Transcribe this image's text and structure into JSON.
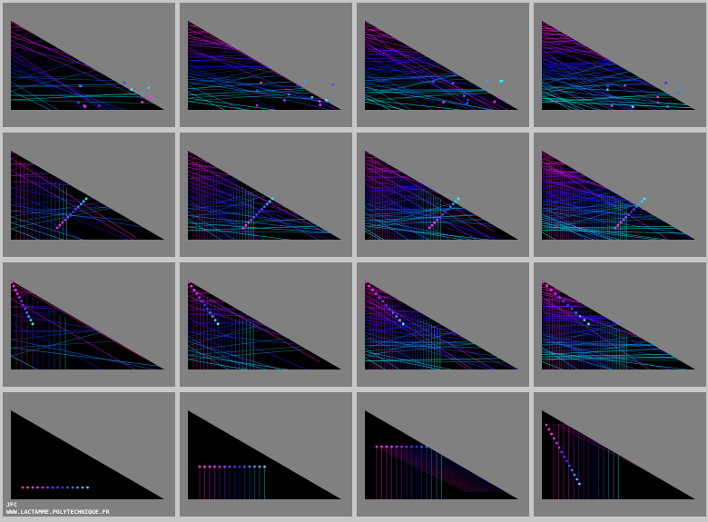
{
  "signature": {
    "author": "JFC",
    "url": "WWW.LACTAMME.POLYTECHNIQUE.FR"
  }
}
